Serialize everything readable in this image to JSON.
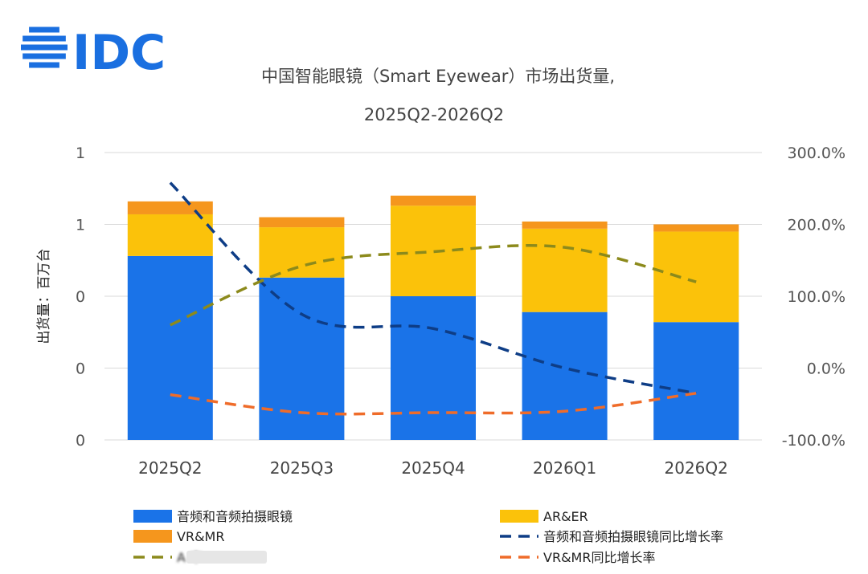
{
  "logo": {
    "text": "IDC",
    "color": "#1a6fe0"
  },
  "chart_data": {
    "type": "bar",
    "subtype": "stacked-bar-with-line-overlay",
    "title_lines": [
      "中国智能眼镜（Smart Eyewear）市场出货量,",
      "2025Q2-2026Q2"
    ],
    "ylabel": "出货量：百万台",
    "categories": [
      "2025Q2",
      "2025Q3",
      "2025Q4",
      "2026Q1",
      "2026Q2"
    ],
    "left_axis": {
      "ylim": [
        0,
        2.0
      ],
      "tick_values": [
        0,
        0.5,
        1.0,
        1.5,
        2.0
      ],
      "tick_labels": [
        "0",
        "0",
        "0",
        "1",
        "1"
      ]
    },
    "right_axis": {
      "ylim": [
        -100,
        300
      ],
      "tick_values": [
        -100,
        0,
        100,
        200,
        300
      ],
      "tick_labels": [
        "-100.0%",
        "0.0%",
        "100.0%",
        "200.0%",
        "300.0%"
      ]
    },
    "grid": "horizontal",
    "legend_position": "bottom",
    "bar_series": [
      {
        "name": "音频和音频拍摄眼镜",
        "color": "#1a73e8",
        "values": [
          1.28,
          1.13,
          1.0,
          0.89,
          0.82
        ]
      },
      {
        "name": "AR&ER",
        "color": "#fbc20a",
        "values": [
          0.29,
          0.35,
          0.63,
          0.58,
          0.63
        ]
      },
      {
        "name": "VR&MR",
        "color": "#f5961d",
        "values": [
          0.09,
          0.07,
          0.07,
          0.05,
          0.05
        ]
      }
    ],
    "line_series": [
      {
        "name": "音频和音频拍摄眼镜同比增长率",
        "color": "#0e3d86",
        "axis": "right",
        "values": [
          258,
          75,
          55,
          0,
          -35
        ]
      },
      {
        "name": "AR&ER同比增长率",
        "color": "#8c8a1c",
        "axis": "right",
        "values": [
          60,
          142,
          162,
          168,
          120
        ]
      },
      {
        "name": "VR&MR同比增长率",
        "color": "#ef6c2a",
        "axis": "right",
        "values": [
          -37,
          -62,
          -62,
          -60,
          -35
        ]
      }
    ],
    "legend": [
      {
        "label": "音频和音频拍摄眼镜",
        "kind": "bar",
        "color": "#1a73e8",
        "obscured": false
      },
      {
        "label": "AR&ER",
        "kind": "bar",
        "color": "#fbc20a",
        "obscured": false
      },
      {
        "label": "VR&MR",
        "kind": "bar",
        "color": "#f5961d",
        "obscured": false
      },
      {
        "label": "音频和音频拍摄眼镜同比增长率",
        "kind": "line",
        "color": "#0e3d86",
        "obscured": false
      },
      {
        "label": "A      率",
        "kind": "line",
        "color": "#8c8a1c",
        "obscured": true
      },
      {
        "label": "VR&MR同比增长率",
        "kind": "line",
        "color": "#ef6c2a",
        "obscured": false
      }
    ]
  }
}
